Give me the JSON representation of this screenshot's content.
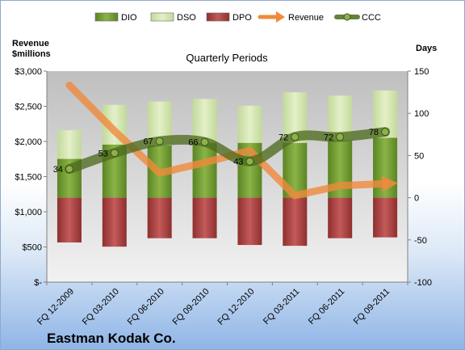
{
  "chart_data": {
    "type": "bar",
    "company": "Eastman Kodak Co.",
    "subtitle": "Quarterly Periods",
    "left_axis_title": [
      "Revenue",
      "$millions"
    ],
    "right_axis_title": "Days",
    "categories": [
      "FQ 12-2009",
      "FQ 03-2010",
      "FQ 06-2010",
      "FQ 09-2010",
      "FQ 12-2010",
      "FQ 03-2011",
      "FQ 06-2011",
      "FQ 09-2011"
    ],
    "left_axis": {
      "min": 0,
      "max": 3000,
      "step": 500,
      "tick_labels": [
        "$-",
        "$500",
        "$1,000",
        "$1,500",
        "$2,000",
        "$2,500",
        "$3,000"
      ]
    },
    "right_axis": {
      "min": -100,
      "max": 150,
      "step": 50
    },
    "legend": [
      "DIO",
      "DSO",
      "DPO",
      "Revenue",
      "CCC"
    ],
    "legend_position": "top",
    "grid": false,
    "series": [
      {
        "name": "DIO",
        "axis": "days",
        "values": [
          46,
          63,
          62,
          65,
          65,
          65,
          68,
          71
        ],
        "color": "#77a033"
      },
      {
        "name": "DSO",
        "axis": "days",
        "values": [
          34,
          47,
          52,
          52,
          44,
          60,
          53,
          56
        ],
        "color": "#d6e8b0"
      },
      {
        "name": "DPO",
        "axis": "days",
        "values": [
          -53,
          -58,
          -48,
          -48,
          -56,
          -57,
          -48,
          -47
        ],
        "color": "#b84a4a"
      },
      {
        "name": "Revenue",
        "axis": "revenue",
        "values": [
          2800,
          2150,
          1550,
          1700,
          1870,
          1230,
          1370,
          1400
        ],
        "color": "#f08a3c"
      },
      {
        "name": "CCC",
        "axis": "days",
        "values": [
          34,
          53,
          67,
          66,
          43,
          72,
          72,
          78
        ],
        "color": "#4e6b1f"
      }
    ]
  }
}
